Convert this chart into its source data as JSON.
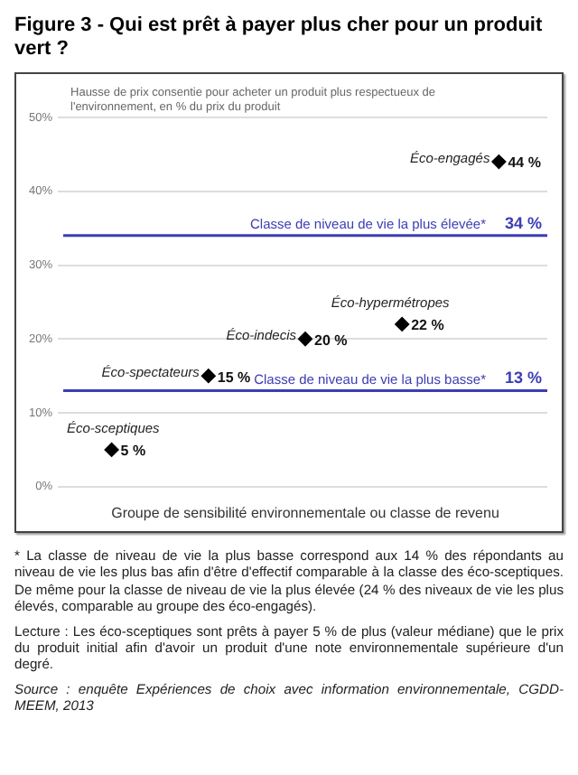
{
  "chart_data": {
    "type": "scatter",
    "title": "Figure 3 - Qui est prêt à payer plus cher pour un produit vert ?",
    "ylabel": "Hausse de prix consentie pour acheter un produit plus respectueux de l'environnement, en % du prix du produit",
    "xlabel": "Groupe de sensibilité environnementale ou classe de revenu",
    "categories": [
      null,
      null,
      null,
      null,
      null
    ],
    "series": [
      {
        "name": "Éco-sceptiques",
        "color": "#000000",
        "values": [
          5,
          null,
          null,
          null,
          null
        ],
        "value_labels": [
          "5 %",
          null,
          null,
          null,
          null
        ]
      },
      {
        "name": "Éco-spectateurs",
        "color": "#000000",
        "values": [
          null,
          15,
          null,
          null,
          null
        ],
        "value_labels": [
          null,
          "15 %",
          null,
          null,
          null
        ]
      },
      {
        "name": "Éco-indecis",
        "color": "#000000",
        "values": [
          null,
          null,
          20,
          null,
          null
        ],
        "value_labels": [
          null,
          null,
          "20 %",
          null,
          null
        ]
      },
      {
        "name": "Éco-hypermétropes",
        "color": "#000000",
        "values": [
          null,
          null,
          null,
          22,
          null
        ],
        "value_labels": [
          null,
          null,
          null,
          "22 %",
          null
        ]
      },
      {
        "name": "Éco-engagés",
        "color": "#000000",
        "values": [
          null,
          null,
          null,
          null,
          44
        ],
        "value_labels": [
          null,
          null,
          null,
          null,
          "44 %"
        ]
      }
    ],
    "marker": "diamond",
    "tick_labels": "y",
    "grid": "y",
    "legend": false,
    "ylim": [
      0,
      50
    ],
    "yticks": [
      {
        "value": 0,
        "label": "0%"
      },
      {
        "value": 10,
        "label": "10%"
      },
      {
        "value": 20,
        "label": "20%"
      },
      {
        "value": 30,
        "label": "30%"
      },
      {
        "value": 40,
        "label": "40%"
      },
      {
        "value": 50,
        "label": "50%"
      }
    ],
    "ref_lines": [
      {
        "axis": "y",
        "value": 34,
        "label": "Classe de niveau de vie la plus élevée*",
        "color": "#3c3cb4"
      },
      {
        "axis": "y",
        "value": 13,
        "label": "Classe de niveau de vie la plus basse*",
        "color": "#3c3cb4"
      }
    ],
    "annotations": [
      {
        "text": "34 %",
        "y": 34
      },
      {
        "text": "13 %",
        "y": 13
      },
      "* La classe de niveau de vie la plus basse correspond aux 14 % des répondants au niveau de vie les plus bas afin d'être d'effectif comparable à la classe des éco-sceptiques. De même pour la classe de niveau de vie la plus élevée (24 % des niveaux de vie les plus élevés, comparable au groupe des éco-engagés).",
      "Lecture : Les éco-sceptiques sont prêts à payer 5 % de plus (valeur médiane) que le prix du produit initial afin d'avoir un produit d'une note environnementale supérieure d'un degré.",
      "Source : enquête Expériences de choix avec information environnementale, CGDD-MEEM, 2013"
    ]
  }
}
